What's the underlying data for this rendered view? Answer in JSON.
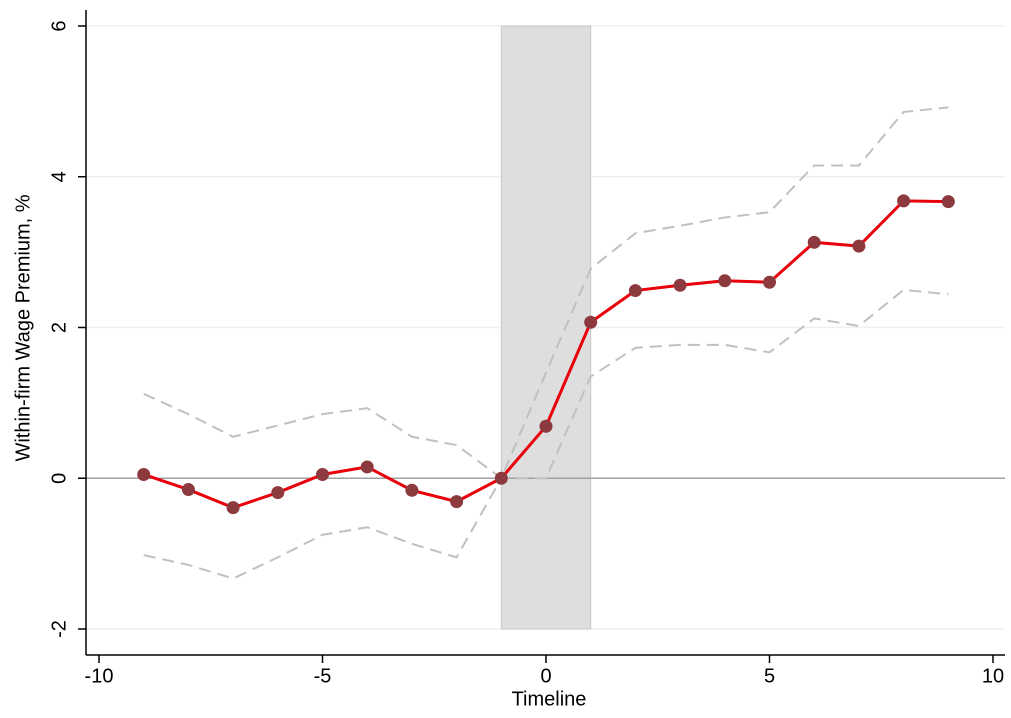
{
  "chart_data": {
    "type": "line",
    "xlabel": "Timeline",
    "ylabel": "Within-firm Wage Premium, %",
    "x": [
      -9,
      -8,
      -7,
      -6,
      -5,
      -4,
      -3,
      -2,
      -1,
      0,
      1,
      2,
      3,
      4,
      5,
      6,
      7,
      8,
      9
    ],
    "series": [
      {
        "color": "#e8000b",
        "marker_color": "#8c3a3e",
        "style": "solid",
        "values": [
          0.05,
          -0.15,
          -0.39,
          -0.19,
          0.05,
          0.15,
          -0.16,
          -0.31,
          0,
          0.69,
          2.07,
          2.49,
          2.56,
          2.62,
          2.6,
          3.13,
          3.08,
          3.68,
          3.67
        ]
      },
      {
        "color": "#c0c0c0",
        "style": "dashed",
        "values": [
          1.12,
          0.85,
          0.55,
          0.7,
          0.85,
          0.93,
          0.55,
          0.44,
          0,
          1.4,
          2.78,
          3.25,
          3.35,
          3.46,
          3.53,
          4.15,
          4.15,
          4.86,
          4.92
        ]
      },
      {
        "color": "#c0c0c0",
        "style": "dashed",
        "values": [
          -1.02,
          -1.15,
          -1.33,
          -1.05,
          -0.75,
          -0.65,
          -0.87,
          -1.05,
          0,
          0,
          1.35,
          1.73,
          1.77,
          1.77,
          1.67,
          2.12,
          2.02,
          2.5,
          2.44
        ]
      }
    ],
    "shade": [
      -1,
      1
    ],
    "shade_color": "#dedede",
    "hline": 0,
    "xlim": [
      -10,
      10
    ],
    "xticks": [
      -10,
      -5,
      0,
      5,
      10
    ],
    "ylim": [
      -2,
      6
    ],
    "yticks": [
      -2,
      0,
      2,
      4,
      6
    ],
    "grid": true
  }
}
